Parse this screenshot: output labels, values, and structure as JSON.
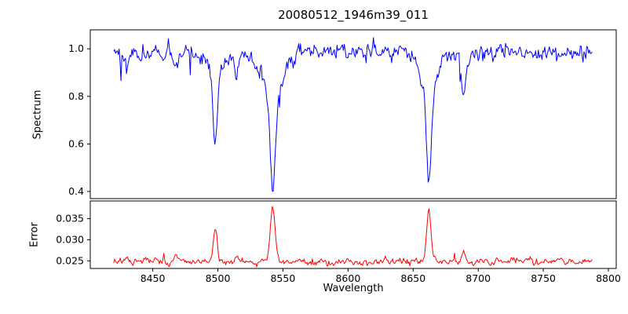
{
  "figure": {
    "title": "20080512_1946m39_011",
    "background": "#ffffff"
  },
  "x_axis": {
    "label": "Wavelength",
    "lim": [
      8402,
      8806
    ],
    "ticks": [
      8450,
      8500,
      8550,
      8600,
      8650,
      8700,
      8750,
      8800
    ],
    "tick_labels": [
      "8450",
      "8500",
      "8550",
      "8600",
      "8650",
      "8700",
      "8750",
      "8800"
    ]
  },
  "chart_data": [
    {
      "type": "line",
      "name": "spectrum",
      "ylabel": "Spectrum",
      "color": "#0000ff",
      "ylim": [
        0.37,
        1.08
      ],
      "yticks": [
        0.4,
        0.6,
        0.8,
        1.0
      ],
      "ytick_labels": [
        "0.4",
        "0.6",
        "0.8",
        "1.0"
      ],
      "x_data_range": [
        8420,
        8788
      ],
      "baseline": 0.985,
      "noise_sigma": 0.016,
      "absorption_lines": [
        {
          "center": 8430.0,
          "depth": 0.06,
          "core_width": 1.2,
          "wing_width": 2.5,
          "wing_frac": 0.2
        },
        {
          "center": 8468.0,
          "depth": 0.08,
          "core_width": 1.3,
          "wing_width": 2.5,
          "wing_frac": 0.2
        },
        {
          "center": 8498.0,
          "depth": 0.395,
          "core_width": 1.6,
          "wing_width": 5.0,
          "wing_frac": 0.25
        },
        {
          "center": 8514.0,
          "depth": 0.09,
          "core_width": 1.3,
          "wing_width": 2.5,
          "wing_frac": 0.2
        },
        {
          "center": 8542.1,
          "depth": 0.585,
          "core_width": 2.0,
          "wing_width": 8.0,
          "wing_frac": 0.3
        },
        {
          "center": 8662.1,
          "depth": 0.53,
          "core_width": 1.9,
          "wing_width": 7.0,
          "wing_frac": 0.28
        },
        {
          "center": 8688.6,
          "depth": 0.205,
          "core_width": 1.5,
          "wing_width": 3.5,
          "wing_frac": 0.2
        }
      ]
    },
    {
      "type": "line",
      "name": "error",
      "ylabel": "Error",
      "color": "#ff0000",
      "ylim": [
        0.0232,
        0.0392
      ],
      "yticks": [
        0.025,
        0.03,
        0.035
      ],
      "ytick_labels": [
        "0.025",
        "0.030",
        "0.035"
      ],
      "x_data_range": [
        8420,
        8788
      ],
      "baseline": 0.0248,
      "noise_sigma": 0.00035,
      "spikes": [
        {
          "center": 8430.0,
          "height": 0.001,
          "width": 1.2
        },
        {
          "center": 8468.0,
          "height": 0.0014,
          "width": 1.2
        },
        {
          "center": 8498.0,
          "height": 0.0078,
          "width": 1.5
        },
        {
          "center": 8514.0,
          "height": 0.0013,
          "width": 1.2
        },
        {
          "center": 8542.1,
          "height": 0.0133,
          "width": 1.8
        },
        {
          "center": 8662.1,
          "height": 0.0128,
          "width": 1.7
        },
        {
          "center": 8688.6,
          "height": 0.0022,
          "width": 1.3
        }
      ]
    }
  ]
}
